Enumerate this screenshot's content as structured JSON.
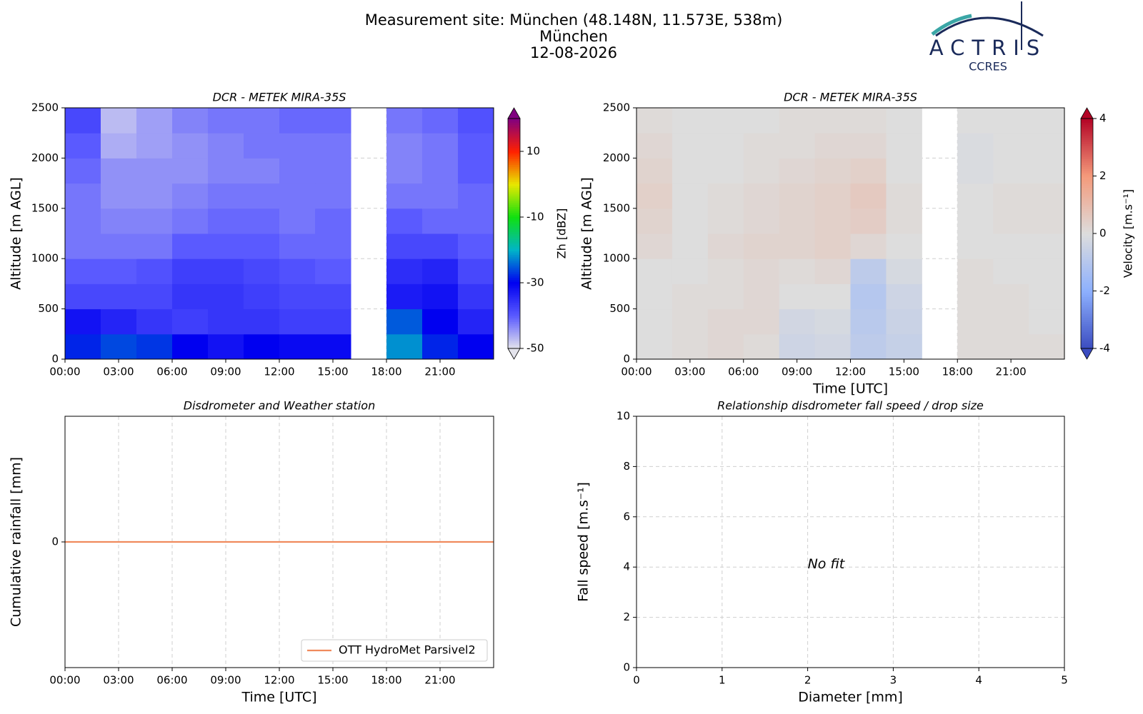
{
  "header": {
    "title": "Measurement site: München (48.148N, 11.573E, 538m)",
    "subtitle": "München",
    "date": "12-08-2026"
  },
  "logo": {
    "name": "ACTRIS",
    "sub": "CCRES"
  },
  "chart_data": [
    {
      "type": "heatmap",
      "title": "DCR - METEK MIRA-35S",
      "ylabel": "Altitude [m AGL]",
      "x": [
        0,
        2,
        4,
        6,
        8,
        10,
        12,
        14,
        16,
        18,
        20,
        22,
        24
      ],
      "y": [
        0,
        250,
        500,
        750,
        1000,
        1250,
        1500,
        1750,
        2000,
        2250,
        2500
      ],
      "values": [
        [
          -28,
          -26,
          -27,
          -30,
          -32,
          -30,
          -31,
          -31,
          null,
          -22,
          -28,
          -30
        ],
        [
          -32,
          -34,
          -36,
          -37,
          -36,
          -36,
          -37,
          -37,
          null,
          -25,
          -30,
          -34
        ],
        [
          -38,
          -38,
          -38,
          -36,
          -36,
          -37,
          -38,
          -38,
          null,
          -33,
          -32,
          -36
        ],
        [
          -40,
          -40,
          -39,
          -37,
          -37,
          -38,
          -39,
          -40,
          null,
          -35,
          -34,
          -38
        ],
        [
          -42,
          -42,
          -42,
          -40,
          -40,
          -40,
          -41,
          -41,
          null,
          -38,
          -38,
          -40
        ],
        [
          -42,
          -43,
          -43,
          -42,
          -41,
          -41,
          -42,
          -41,
          null,
          -40,
          -41,
          -41
        ],
        [
          -42,
          -44,
          -44,
          -43,
          -42,
          -42,
          -42,
          -42,
          null,
          -42,
          -42,
          -41
        ],
        [
          -41,
          -44,
          -44,
          -44,
          -43,
          -43,
          -42,
          -42,
          null,
          -43,
          -42,
          -40
        ],
        [
          -40,
          -46,
          -45,
          -44,
          -43,
          -42,
          -42,
          -42,
          null,
          -43,
          -42,
          -40
        ],
        [
          -38,
          -47,
          -45,
          -43,
          -42,
          -42,
          -41,
          -41,
          null,
          -42,
          -41,
          -39
        ]
      ],
      "xlim": [
        0,
        24
      ],
      "ylim": [
        0,
        2500
      ],
      "xticks": [
        {
          "value": 0,
          "label": "00:00"
        },
        {
          "value": 3,
          "label": "03:00"
        },
        {
          "value": 6,
          "label": "06:00"
        },
        {
          "value": 9,
          "label": "09:00"
        },
        {
          "value": 12,
          "label": "12:00"
        },
        {
          "value": 15,
          "label": "15:00"
        },
        {
          "value": 18,
          "label": "18:00"
        },
        {
          "value": 21,
          "label": "21:00"
        }
      ],
      "yticks": [
        0,
        500,
        1000,
        1500,
        2000,
        2500
      ],
      "grid": true,
      "colorbar_label": "Zh [dBZ]",
      "zlim": [
        -50,
        20
      ],
      "zticks": [
        -50,
        -30,
        -10,
        10
      ],
      "colormap": [
        "#e4e4ec",
        "#5a5aff",
        "#0000f0",
        "#00b4c8",
        "#10e010",
        "#e8e800",
        "#ff2000",
        "#800080"
      ]
    },
    {
      "type": "heatmap",
      "title": "DCR - METEK MIRA-35S",
      "ylabel": "Altitude [m AGL]",
      "xlabel": "Time [UTC]",
      "x": [
        0,
        2,
        4,
        6,
        8,
        10,
        12,
        14,
        16,
        18,
        20,
        22,
        24
      ],
      "y": [
        0,
        250,
        500,
        750,
        1000,
        1250,
        1500,
        1750,
        2000,
        2250,
        2500
      ],
      "values": [
        [
          0,
          0.1,
          0.2,
          0.1,
          -0.4,
          -0.3,
          -0.8,
          -0.6,
          null,
          0.1,
          0.1,
          0.1
        ],
        [
          0,
          0.1,
          0.2,
          0.2,
          -0.3,
          -0.2,
          -0.9,
          -0.5,
          null,
          0.1,
          0.1,
          0
        ],
        [
          0,
          0.1,
          0.1,
          0.2,
          0,
          0,
          -1,
          -0.4,
          null,
          0.1,
          0.1,
          0
        ],
        [
          0,
          0,
          0.1,
          0.2,
          0.1,
          0.2,
          -0.8,
          -0.2,
          null,
          0.1,
          0,
          0
        ],
        [
          0.2,
          0,
          0.2,
          0.3,
          0.3,
          0.4,
          0.2,
          0,
          null,
          0,
          0,
          0
        ],
        [
          0.3,
          0,
          0.1,
          0.2,
          0.3,
          0.4,
          0.5,
          0.1,
          null,
          0,
          0.1,
          0.1
        ],
        [
          0.4,
          0,
          0.1,
          0.2,
          0.3,
          0.4,
          0.6,
          0.1,
          null,
          0,
          0.1,
          0.1
        ],
        [
          0.3,
          0,
          0,
          0.1,
          0.2,
          0.3,
          0.4,
          0,
          null,
          -0.1,
          0,
          0
        ],
        [
          0.2,
          0,
          0,
          0.1,
          0.1,
          0.2,
          0.2,
          0,
          null,
          -0.1,
          0,
          0
        ],
        [
          0.1,
          0,
          0,
          0,
          0.1,
          0.1,
          0.1,
          0,
          null,
          0,
          0,
          0
        ]
      ],
      "xlim": [
        0,
        24
      ],
      "ylim": [
        0,
        2500
      ],
      "xticks": [
        {
          "value": 0,
          "label": "00:00"
        },
        {
          "value": 3,
          "label": "03:00"
        },
        {
          "value": 6,
          "label": "06:00"
        },
        {
          "value": 9,
          "label": "09:00"
        },
        {
          "value": 12,
          "label": "12:00"
        },
        {
          "value": 15,
          "label": "15:00"
        },
        {
          "value": 18,
          "label": "18:00"
        },
        {
          "value": 21,
          "label": "21:00"
        }
      ],
      "yticks": [
        0,
        500,
        1000,
        1500,
        2000,
        2500
      ],
      "grid": true,
      "colorbar_label": "Velocity [m.s⁻¹]",
      "zlim": [
        -4,
        4
      ],
      "zticks": [
        -4,
        -2,
        0,
        2,
        4
      ],
      "colormap": [
        "#3b4cc0",
        "#8db0fe",
        "#dddddd",
        "#f49a7b",
        "#b40426"
      ]
    },
    {
      "type": "line",
      "title": "Disdrometer and Weather station",
      "ylabel": "Cumulative rainfall [mm]",
      "xlabel": "Time [UTC]",
      "series": [
        {
          "name": "OTT HydroMet Parsivel2",
          "color": "#f08a5d",
          "x": [
            0,
            24
          ],
          "values": [
            0,
            0
          ]
        }
      ],
      "xlim": [
        0,
        24
      ],
      "ylim": [
        -1,
        1
      ],
      "xticks": [
        {
          "value": 0,
          "label": "00:00"
        },
        {
          "value": 3,
          "label": "03:00"
        },
        {
          "value": 6,
          "label": "06:00"
        },
        {
          "value": 9,
          "label": "09:00"
        },
        {
          "value": 12,
          "label": "12:00"
        },
        {
          "value": 15,
          "label": "15:00"
        },
        {
          "value": 18,
          "label": "18:00"
        },
        {
          "value": 21,
          "label": "21:00"
        }
      ],
      "yticks": [
        0
      ],
      "grid": true,
      "legend": "lower right"
    },
    {
      "type": "scatter",
      "title": "Relationship disdrometer fall speed / drop size",
      "ylabel": "Fall speed [m.s⁻¹]",
      "xlabel": "Diameter [mm]",
      "xlim": [
        0,
        5
      ],
      "ylim": [
        0,
        10
      ],
      "xticks": [
        0,
        1,
        2,
        3,
        4,
        5
      ],
      "yticks": [
        0,
        2,
        4,
        6,
        8,
        10
      ],
      "grid": true,
      "annotations": [
        {
          "text": "No fit",
          "x": 2,
          "y": 4.1
        }
      ]
    }
  ]
}
